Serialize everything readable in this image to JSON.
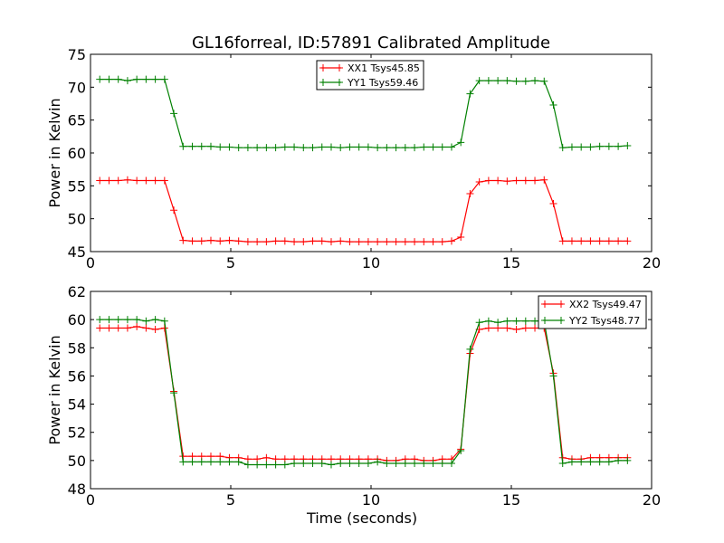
{
  "title": "GL16forreal, ID:57891 Calibrated Amplitude",
  "chart_data": [
    {
      "type": "line",
      "title": "GL16forreal, ID:57891 Calibrated Amplitude",
      "xlabel": "",
      "ylabel": "Power in Kelvin",
      "xlim": [
        0,
        20
      ],
      "ylim": [
        45,
        75
      ],
      "xticks": [
        "0",
        "5",
        "10",
        "15",
        "20"
      ],
      "yticks": [
        "45",
        "50",
        "55",
        "60",
        "65",
        "70",
        "75"
      ],
      "grid": false,
      "legend_position": "top-center",
      "x": [
        0.33,
        0.66,
        0.99,
        1.32,
        1.65,
        1.98,
        2.31,
        2.64,
        2.97,
        3.3,
        3.63,
        3.96,
        4.29,
        4.62,
        4.95,
        5.28,
        5.61,
        5.94,
        6.27,
        6.6,
        6.93,
        7.26,
        7.59,
        7.92,
        8.25,
        8.58,
        8.91,
        9.24,
        9.57,
        9.9,
        10.23,
        10.56,
        10.89,
        11.22,
        11.55,
        11.88,
        12.21,
        12.54,
        12.87,
        13.2,
        13.53,
        13.86,
        14.19,
        14.52,
        14.85,
        15.18,
        15.51,
        15.84,
        16.17,
        16.5,
        16.83,
        17.16,
        17.49,
        17.82,
        18.15,
        18.48,
        18.81,
        19.14
      ],
      "series": [
        {
          "name": "XX1 Tsys45.85",
          "color": "#ff0000",
          "values": [
            55.8,
            55.8,
            55.8,
            55.9,
            55.8,
            55.8,
            55.8,
            55.8,
            51.3,
            46.7,
            46.6,
            46.6,
            46.7,
            46.6,
            46.7,
            46.6,
            46.5,
            46.5,
            46.5,
            46.6,
            46.6,
            46.5,
            46.5,
            46.6,
            46.6,
            46.5,
            46.6,
            46.5,
            46.5,
            46.5,
            46.5,
            46.5,
            46.5,
            46.5,
            46.5,
            46.5,
            46.5,
            46.5,
            46.6,
            47.2,
            53.8,
            55.6,
            55.8,
            55.8,
            55.7,
            55.8,
            55.8,
            55.8,
            55.9,
            52.3,
            46.6,
            46.6,
            46.6,
            46.6,
            46.6,
            46.6,
            46.6,
            46.6
          ]
        },
        {
          "name": "YY1 Tsys59.46",
          "color": "#008000",
          "values": [
            71.2,
            71.2,
            71.2,
            71.0,
            71.2,
            71.2,
            71.2,
            71.2,
            66.0,
            61.0,
            61.0,
            61.0,
            61.0,
            60.9,
            60.9,
            60.8,
            60.8,
            60.8,
            60.8,
            60.8,
            60.9,
            60.9,
            60.8,
            60.8,
            60.9,
            60.9,
            60.8,
            60.9,
            60.9,
            60.9,
            60.8,
            60.8,
            60.8,
            60.8,
            60.8,
            60.9,
            60.9,
            60.9,
            60.9,
            61.6,
            69.0,
            71.0,
            71.0,
            71.0,
            71.0,
            70.9,
            70.9,
            71.0,
            70.9,
            67.3,
            60.8,
            60.9,
            60.9,
            60.9,
            61.0,
            61.0,
            61.0,
            61.1
          ]
        }
      ]
    },
    {
      "type": "line",
      "title": "",
      "xlabel": "Time (seconds)",
      "ylabel": "Power in Kelvin",
      "xlim": [
        0,
        20
      ],
      "ylim": [
        48,
        62
      ],
      "xticks": [
        "0",
        "5",
        "10",
        "15",
        "20"
      ],
      "yticks": [
        "48",
        "50",
        "52",
        "54",
        "56",
        "58",
        "60",
        "62"
      ],
      "grid": false,
      "legend_position": "top-right",
      "x": [
        0.33,
        0.66,
        0.99,
        1.32,
        1.65,
        1.98,
        2.31,
        2.64,
        2.97,
        3.3,
        3.63,
        3.96,
        4.29,
        4.62,
        4.95,
        5.28,
        5.61,
        5.94,
        6.27,
        6.6,
        6.93,
        7.26,
        7.59,
        7.92,
        8.25,
        8.58,
        8.91,
        9.24,
        9.57,
        9.9,
        10.23,
        10.56,
        10.89,
        11.22,
        11.55,
        11.88,
        12.21,
        12.54,
        12.87,
        13.2,
        13.53,
        13.86,
        14.19,
        14.52,
        14.85,
        15.18,
        15.51,
        15.84,
        16.17,
        16.5,
        16.83,
        17.16,
        17.49,
        17.82,
        18.15,
        18.48,
        18.81,
        19.14
      ],
      "series": [
        {
          "name": "XX2 Tsys49.47",
          "color": "#ff0000",
          "values": [
            59.4,
            59.4,
            59.4,
            59.4,
            59.5,
            59.4,
            59.3,
            59.4,
            54.9,
            50.3,
            50.3,
            50.3,
            50.3,
            50.3,
            50.2,
            50.2,
            50.1,
            50.1,
            50.2,
            50.1,
            50.1,
            50.1,
            50.1,
            50.1,
            50.1,
            50.1,
            50.1,
            50.1,
            50.1,
            50.1,
            50.1,
            50.0,
            50.0,
            50.1,
            50.1,
            50.0,
            50.0,
            50.1,
            50.1,
            50.8,
            57.6,
            59.3,
            59.4,
            59.4,
            59.4,
            59.3,
            59.4,
            59.4,
            59.4,
            56.2,
            50.2,
            50.1,
            50.1,
            50.2,
            50.2,
            50.2,
            50.2,
            50.2
          ]
        },
        {
          "name": "YY2 Tsys48.77",
          "color": "#008000",
          "values": [
            60.0,
            60.0,
            60.0,
            60.0,
            60.0,
            59.9,
            60.0,
            59.9,
            54.8,
            49.9,
            49.9,
            49.9,
            49.9,
            49.9,
            49.9,
            49.9,
            49.7,
            49.7,
            49.7,
            49.7,
            49.7,
            49.8,
            49.8,
            49.8,
            49.8,
            49.7,
            49.8,
            49.8,
            49.8,
            49.8,
            49.9,
            49.8,
            49.8,
            49.8,
            49.8,
            49.8,
            49.8,
            49.8,
            49.8,
            50.7,
            57.9,
            59.8,
            59.9,
            59.8,
            59.9,
            59.9,
            59.9,
            59.9,
            59.9,
            56.0,
            49.8,
            49.9,
            49.9,
            49.9,
            49.9,
            49.9,
            50.0,
            50.0
          ]
        }
      ]
    }
  ]
}
